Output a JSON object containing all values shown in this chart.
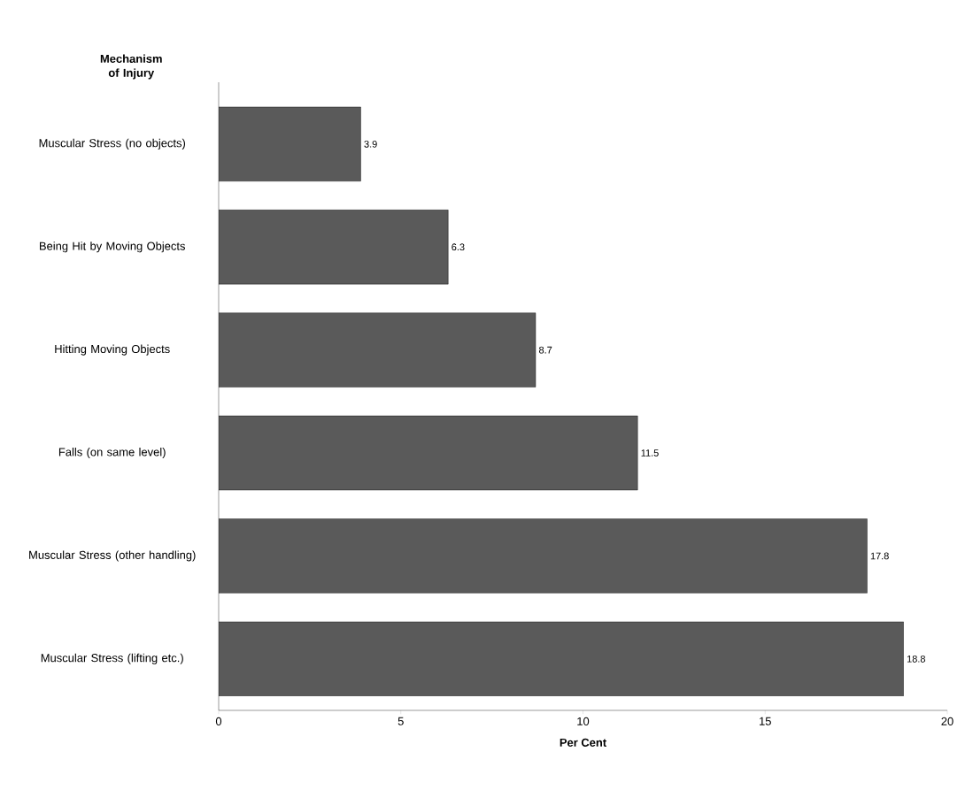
{
  "chart_data": {
    "type": "bar",
    "orientation": "horizontal",
    "ylabel": "Mechanism of Injury",
    "xlabel": "Per Cent",
    "categories": [
      "Muscular Stress (no objects)",
      "Being Hit by Moving Objects",
      "Hitting Moving Objects",
      "Falls (on same level)",
      "Muscular Stress (other handling)",
      "Muscular Stress (lifting etc.)"
    ],
    "values": [
      3.9,
      6.3,
      8.7,
      11.5,
      17.8,
      18.8
    ],
    "color": "#5a5a5a",
    "xlim": [
      0,
      20
    ],
    "xticks": [
      0,
      5,
      10,
      15,
      20
    ],
    "data_labels": true
  }
}
